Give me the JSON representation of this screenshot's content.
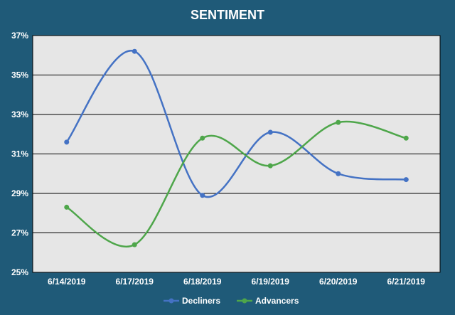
{
  "chart_data": {
    "type": "line",
    "title": "SENTIMENT",
    "categories": [
      "6/14/2019",
      "6/17/2019",
      "6/18/2019",
      "6/19/2019",
      "6/20/2019",
      "6/21/2019"
    ],
    "yticks": [
      "25%",
      "27%",
      "29%",
      "31%",
      "33%",
      "35%",
      "37%"
    ],
    "ylim": [
      25,
      37
    ],
    "grid": true,
    "legend": "bottom",
    "smooth": true,
    "series": [
      {
        "name": "Decliners",
        "color": "#4472c4",
        "values": [
          31.6,
          36.2,
          28.9,
          32.1,
          30.0,
          29.7
        ]
      },
      {
        "name": "Advancers",
        "color": "#4ea64a",
        "values": [
          28.3,
          26.4,
          31.8,
          30.4,
          32.6,
          31.8
        ]
      }
    ]
  },
  "colors": {
    "background": "#1f5a78",
    "plot_area": "#e6e6e6",
    "grid": "#000000"
  }
}
